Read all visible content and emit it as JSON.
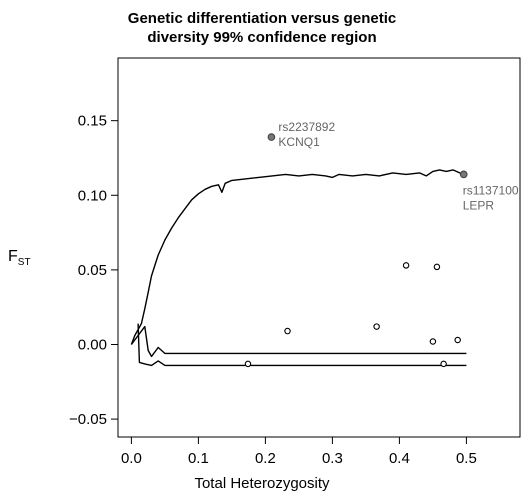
{
  "chart_data": {
    "type": "scatter",
    "title_lines": [
      "Genetic differentiation versus genetic",
      "diversity 99% confidence region"
    ],
    "xlabel": "Total Heterozygosity",
    "ylabel_main": "F",
    "ylabel_sub": "ST",
    "xlim": [
      -0.02,
      0.58
    ],
    "ylim": [
      -0.062,
      0.192
    ],
    "xticks": [
      0.0,
      0.1,
      0.2,
      0.3,
      0.4,
      0.5
    ],
    "xtick_labels": [
      "0.0",
      "0.1",
      "0.2",
      "0.3",
      "0.4",
      "0.5"
    ],
    "yticks": [
      -0.05,
      0.0,
      0.05,
      0.1,
      0.15
    ],
    "ytick_labels": [
      "−0.05",
      "0.00",
      "0.05",
      "0.10",
      "0.15"
    ],
    "grid": false,
    "confidence_upper": [
      [
        0.0,
        0.0
      ],
      [
        0.005,
        0.006
      ],
      [
        0.01,
        0.01
      ],
      [
        0.015,
        0.014
      ],
      [
        0.02,
        0.024
      ],
      [
        0.025,
        0.035
      ],
      [
        0.03,
        0.046
      ],
      [
        0.04,
        0.06
      ],
      [
        0.05,
        0.07
      ],
      [
        0.06,
        0.078
      ],
      [
        0.07,
        0.085
      ],
      [
        0.08,
        0.091
      ],
      [
        0.09,
        0.097
      ],
      [
        0.1,
        0.101
      ],
      [
        0.11,
        0.104
      ],
      [
        0.12,
        0.106
      ],
      [
        0.13,
        0.107
      ],
      [
        0.135,
        0.102
      ],
      [
        0.14,
        0.108
      ],
      [
        0.15,
        0.11
      ],
      [
        0.17,
        0.111
      ],
      [
        0.19,
        0.112
      ],
      [
        0.21,
        0.113
      ],
      [
        0.23,
        0.114
      ],
      [
        0.25,
        0.113
      ],
      [
        0.27,
        0.114
      ],
      [
        0.29,
        0.113
      ],
      [
        0.3,
        0.112
      ],
      [
        0.31,
        0.114
      ],
      [
        0.33,
        0.113
      ],
      [
        0.35,
        0.114
      ],
      [
        0.37,
        0.113
      ],
      [
        0.39,
        0.115
      ],
      [
        0.41,
        0.114
      ],
      [
        0.43,
        0.115
      ],
      [
        0.44,
        0.113
      ],
      [
        0.45,
        0.116
      ],
      [
        0.46,
        0.117
      ],
      [
        0.47,
        0.116
      ],
      [
        0.48,
        0.117
      ],
      [
        0.49,
        0.115
      ],
      [
        0.5,
        0.114
      ]
    ],
    "confidence_middle": [
      [
        0.0,
        0.0
      ],
      [
        0.01,
        0.006
      ],
      [
        0.02,
        0.012
      ],
      [
        0.025,
        -0.004
      ],
      [
        0.03,
        -0.008
      ],
      [
        0.04,
        -0.002
      ],
      [
        0.05,
        -0.006
      ],
      [
        0.1,
        -0.006
      ],
      [
        0.2,
        -0.006
      ],
      [
        0.3,
        -0.006
      ],
      [
        0.4,
        -0.006
      ],
      [
        0.5,
        -0.006
      ]
    ],
    "confidence_lower": [
      [
        0.01,
        0.014
      ],
      [
        0.012,
        -0.012
      ],
      [
        0.02,
        -0.013
      ],
      [
        0.03,
        -0.014
      ],
      [
        0.04,
        -0.011
      ],
      [
        0.05,
        -0.014
      ],
      [
        0.1,
        -0.014
      ],
      [
        0.2,
        -0.014
      ],
      [
        0.3,
        -0.014
      ],
      [
        0.4,
        -0.014
      ],
      [
        0.5,
        -0.014
      ]
    ],
    "points": [
      {
        "x": 0.209,
        "y": 0.139,
        "filled": true,
        "label_1": "rs2237892",
        "label_2": "KCNQ1"
      },
      {
        "x": 0.496,
        "y": 0.114,
        "filled": true,
        "label_1": "rs1137100",
        "label_2": "LEPR"
      },
      {
        "x": 0.174,
        "y": -0.013,
        "filled": false
      },
      {
        "x": 0.233,
        "y": 0.009,
        "filled": false
      },
      {
        "x": 0.366,
        "y": 0.012,
        "filled": false
      },
      {
        "x": 0.41,
        "y": 0.053,
        "filled": false
      },
      {
        "x": 0.45,
        "y": 0.002,
        "filled": false
      },
      {
        "x": 0.456,
        "y": 0.052,
        "filled": false
      },
      {
        "x": 0.466,
        "y": -0.013,
        "filled": false
      },
      {
        "x": 0.487,
        "y": 0.003,
        "filled": false
      }
    ]
  }
}
